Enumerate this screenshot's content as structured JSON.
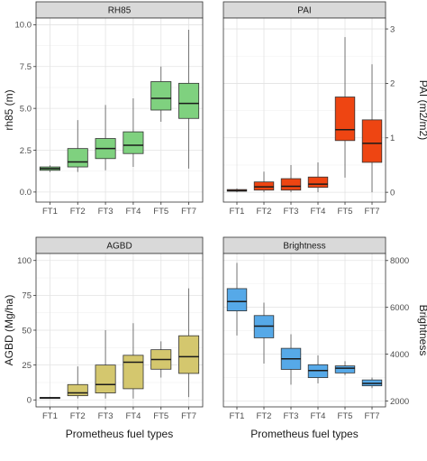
{
  "chart_data": [
    {
      "type": "box",
      "title": "RH85",
      "ylabel": "rh85 (m)",
      "y_axis_side": "left",
      "ylim": [
        -0.6,
        10.4
      ],
      "yticks": [
        0,
        2.5,
        5,
        7.5,
        10
      ],
      "ytick_labels": [
        "0.0",
        "2.5",
        "5.0",
        "7.5",
        "10.0"
      ],
      "color": "#7fd17f",
      "categories": [
        "FT1",
        "FT2",
        "FT3",
        "FT4",
        "FT5",
        "FT7"
      ],
      "boxes": [
        {
          "low": 1.2,
          "q1": 1.3,
          "median": 1.4,
          "q3": 1.5,
          "high": 1.6
        },
        {
          "low": 1.2,
          "q1": 1.5,
          "median": 1.8,
          "q3": 2.6,
          "high": 4.3
        },
        {
          "low": 1.3,
          "q1": 2.0,
          "median": 2.6,
          "q3": 3.2,
          "high": 5.2
        },
        {
          "low": 1.5,
          "q1": 2.3,
          "median": 2.8,
          "q3": 3.6,
          "high": 5.6
        },
        {
          "low": 4.2,
          "q1": 4.9,
          "median": 5.6,
          "q3": 6.6,
          "high": 7.5
        },
        {
          "low": 1.4,
          "q1": 4.4,
          "median": 5.3,
          "q3": 6.5,
          "high": 9.7
        }
      ]
    },
    {
      "type": "box",
      "title": "PAI",
      "ylabel": "PAI (m2/m2)",
      "y_axis_side": "right",
      "ylim": [
        -0.18,
        3.2
      ],
      "yticks": [
        0,
        1,
        2,
        3
      ],
      "ytick_labels": [
        "0",
        "1",
        "2",
        "3"
      ],
      "color": "#ee4512",
      "categories": [
        "FT1",
        "FT2",
        "FT3",
        "FT4",
        "FT5",
        "FT7"
      ],
      "boxes": [
        {
          "low": 0.0,
          "q1": 0.02,
          "median": 0.03,
          "q3": 0.05,
          "high": 0.07
        },
        {
          "low": 0.0,
          "q1": 0.04,
          "median": 0.1,
          "q3": 0.19,
          "high": 0.38
        },
        {
          "low": 0.0,
          "q1": 0.04,
          "median": 0.11,
          "q3": 0.25,
          "high": 0.5
        },
        {
          "low": 0.0,
          "q1": 0.09,
          "median": 0.15,
          "q3": 0.28,
          "high": 0.55
        },
        {
          "low": 0.27,
          "q1": 0.95,
          "median": 1.15,
          "q3": 1.75,
          "high": 2.85
        },
        {
          "low": 0.0,
          "q1": 0.55,
          "median": 0.9,
          "q3": 1.33,
          "high": 2.35
        }
      ]
    },
    {
      "type": "box",
      "title": "AGBD",
      "ylabel": "AGBD (Mg/ha)",
      "y_axis_side": "left",
      "ylim": [
        -5,
        105
      ],
      "yticks": [
        0,
        25,
        50,
        75,
        100
      ],
      "ytick_labels": [
        "0",
        "25",
        "50",
        "75",
        "100"
      ],
      "color": "#d4c76e",
      "categories": [
        "FT1",
        "FT2",
        "FT3",
        "FT4",
        "FT5",
        "FT7"
      ],
      "boxes": [
        {
          "low": 1,
          "q1": 1.2,
          "median": 1.5,
          "q3": 1.8,
          "high": 2.2
        },
        {
          "low": 1,
          "q1": 3,
          "median": 5,
          "q3": 11,
          "high": 24
        },
        {
          "low": 1,
          "q1": 5,
          "median": 11,
          "q3": 25,
          "high": 50
        },
        {
          "low": 1,
          "q1": 8,
          "median": 27,
          "q3": 32,
          "high": 55
        },
        {
          "low": 16,
          "q1": 22,
          "median": 29,
          "q3": 36,
          "high": 42
        },
        {
          "low": 2,
          "q1": 19,
          "median": 31,
          "q3": 46,
          "high": 80
        }
      ]
    },
    {
      "type": "box",
      "title": "Brightness",
      "ylabel": "Brightness",
      "y_axis_side": "right",
      "ylim": [
        1750,
        8300
      ],
      "yticks": [
        2000,
        4000,
        6000,
        8000
      ],
      "ytick_labels": [
        "2000",
        "4000",
        "6000",
        "8000"
      ],
      "color": "#56a9e8",
      "categories": [
        "FT1",
        "FT2",
        "FT3",
        "FT4",
        "FT5",
        "FT7"
      ],
      "boxes": [
        {
          "low": 4800,
          "q1": 5850,
          "median": 6250,
          "q3": 6800,
          "high": 7900
        },
        {
          "low": 3600,
          "q1": 4700,
          "median": 5200,
          "q3": 5650,
          "high": 6200
        },
        {
          "low": 2700,
          "q1": 3350,
          "median": 3800,
          "q3": 4250,
          "high": 4850
        },
        {
          "low": 2750,
          "q1": 3000,
          "median": 3300,
          "q3": 3550,
          "high": 3950
        },
        {
          "low": 3100,
          "q1": 3200,
          "median": 3400,
          "q3": 3500,
          "high": 3700
        },
        {
          "low": 2550,
          "q1": 2650,
          "median": 2750,
          "q3": 2900,
          "high": 3000
        }
      ]
    }
  ],
  "xlabel": "Prometheus fuel types"
}
